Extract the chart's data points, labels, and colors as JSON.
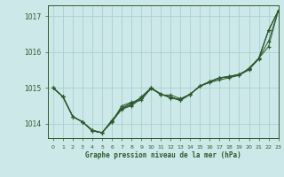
{
  "title": "Graphe pression niveau de la mer (hPa)",
  "bg_color": "#cce8e8",
  "grid_color": "#aad0d0",
  "line_color": "#2d5a2d",
  "marker_color": "#2d5a2d",
  "xlim": [
    -0.5,
    23
  ],
  "ylim": [
    1013.6,
    1017.3
  ],
  "yticks": [
    1014,
    1015,
    1016,
    1017
  ],
  "xticks": [
    0,
    1,
    2,
    3,
    4,
    5,
    6,
    7,
    8,
    9,
    10,
    11,
    12,
    13,
    14,
    15,
    16,
    17,
    18,
    19,
    20,
    21,
    22,
    23
  ],
  "series": [
    [
      1015.0,
      1014.75,
      1014.2,
      1014.05,
      1013.8,
      1013.75,
      1014.05,
      1014.5,
      1014.6,
      1014.65,
      1015.0,
      1014.8,
      1014.8,
      1014.7,
      1014.82,
      1015.05,
      1015.15,
      1015.22,
      1015.28,
      1015.35,
      1015.55,
      1015.83,
      1016.6,
      1017.15
    ],
    [
      1015.0,
      1014.75,
      1014.2,
      1014.05,
      1013.8,
      1013.75,
      1014.08,
      1014.45,
      1014.58,
      1014.72,
      1015.0,
      1014.83,
      1014.72,
      1014.68,
      1014.83,
      1015.05,
      1015.18,
      1015.28,
      1015.32,
      1015.37,
      1015.52,
      1015.82,
      1016.3,
      1017.15
    ],
    [
      1015.0,
      1014.75,
      1014.2,
      1014.05,
      1013.8,
      1013.75,
      1014.05,
      1014.4,
      1014.5,
      1014.7,
      1014.97,
      1014.83,
      1014.72,
      1014.65,
      1014.82,
      1015.05,
      1015.15,
      1015.28,
      1015.3,
      1015.35,
      1015.5,
      1015.82,
      1016.15,
      1017.15
    ],
    [
      1015.0,
      1014.75,
      1014.2,
      1014.05,
      1013.82,
      1013.75,
      1014.1,
      1014.42,
      1014.52,
      1014.75,
      1015.0,
      1014.82,
      1014.75,
      1014.65,
      1014.82,
      1015.05,
      1015.18,
      1015.28,
      1015.32,
      1015.38,
      1015.52,
      1015.8,
      1016.6,
      1017.15
    ],
    [
      1015.0,
      1014.75,
      1014.2,
      1014.05,
      1013.82,
      1013.75,
      1014.08,
      1014.42,
      1014.55,
      1014.72,
      1015.0,
      1014.82,
      1014.73,
      1014.67,
      1014.82,
      1015.05,
      1015.17,
      1015.27,
      1015.31,
      1015.37,
      1015.52,
      1015.82,
      1016.6,
      1017.15
    ]
  ]
}
